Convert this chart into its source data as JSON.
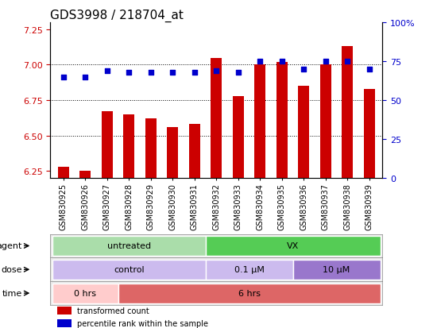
{
  "title": "GDS3998 / 218704_at",
  "samples": [
    "GSM830925",
    "GSM830926",
    "GSM830927",
    "GSM830928",
    "GSM830929",
    "GSM830930",
    "GSM830931",
    "GSM830932",
    "GSM830933",
    "GSM830934",
    "GSM830935",
    "GSM830936",
    "GSM830937",
    "GSM830938",
    "GSM830939"
  ],
  "bar_values": [
    6.28,
    6.25,
    6.67,
    6.65,
    6.62,
    6.56,
    6.58,
    7.05,
    6.78,
    7.0,
    7.02,
    6.85,
    7.0,
    7.13,
    6.83
  ],
  "dot_values_pct": [
    65,
    65,
    69,
    68,
    68,
    68,
    68,
    69,
    68,
    75,
    75,
    70,
    75,
    75,
    70
  ],
  "ylim_left": [
    6.2,
    7.3
  ],
  "ylim_right": [
    0,
    100
  ],
  "yticks_left": [
    6.25,
    6.5,
    6.75,
    7.0,
    7.25
  ],
  "yticks_right": [
    0,
    25,
    50,
    75,
    100
  ],
  "ytick_labels_right": [
    "0",
    "25",
    "50",
    "75",
    "100%"
  ],
  "bar_color": "#cc0000",
  "dot_color": "#0000cc",
  "bar_bottom": 6.2,
  "grid_lines": [
    6.5,
    6.75,
    7.0
  ],
  "agent_groups": [
    {
      "label": "untreated",
      "start": 0,
      "end": 7,
      "color": "#aaddaa"
    },
    {
      "label": "VX",
      "start": 7,
      "end": 15,
      "color": "#55cc55"
    }
  ],
  "dose_groups": [
    {
      "label": "control",
      "start": 0,
      "end": 7,
      "color": "#ccbbee"
    },
    {
      "label": "0.1 μM",
      "start": 7,
      "end": 11,
      "color": "#ccbbee"
    },
    {
      "label": "10 μM",
      "start": 11,
      "end": 15,
      "color": "#9977cc"
    }
  ],
  "time_groups": [
    {
      "label": "0 hrs",
      "start": 0,
      "end": 3,
      "color": "#ffcccc"
    },
    {
      "label": "6 hrs",
      "start": 3,
      "end": 15,
      "color": "#dd6666"
    }
  ],
  "legend_items": [
    {
      "label": "transformed count",
      "color": "#cc0000"
    },
    {
      "label": "percentile rank within the sample",
      "color": "#0000cc"
    }
  ],
  "bg_color": "#ffffff",
  "tick_label_color_left": "#cc0000",
  "tick_label_color_right": "#0000cc",
  "title_fontsize": 11,
  "tick_fontsize": 8,
  "annot_fontsize": 8
}
